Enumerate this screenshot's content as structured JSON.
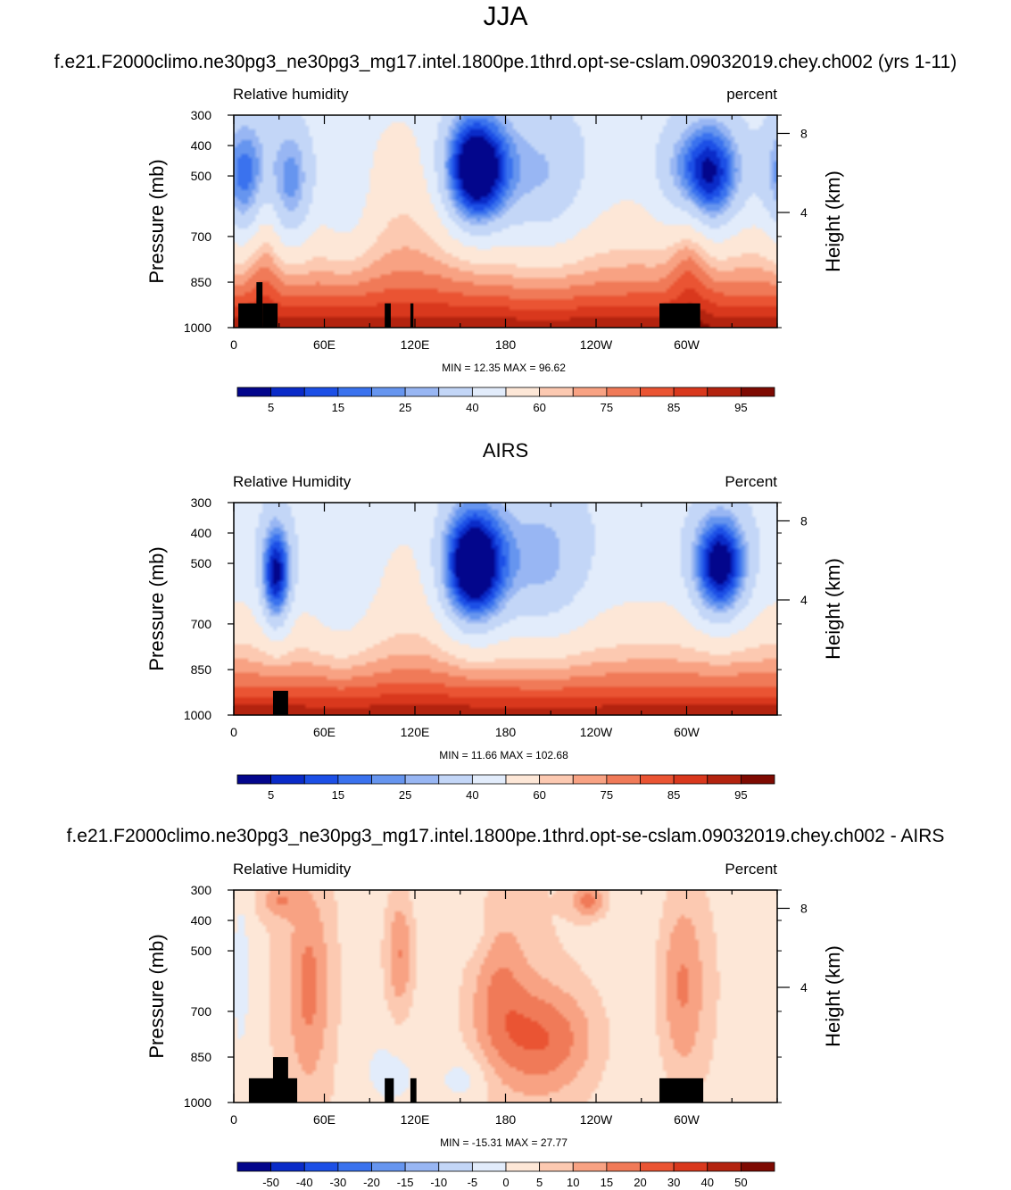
{
  "page": {
    "title": "JJA"
  },
  "panels": [
    {
      "header": "f.e21.F2000climo.ne30pg3_ne30pg3_mg17.intel.1800pe.1thrd.opt-se-cslam.09032019.chey.ch002 (yrs 1-11)",
      "left_label": "Relative humidity",
      "right_label": "percent",
      "min_max": "MIN =  12.35  MAX =  96.62"
    },
    {
      "header": "AIRS",
      "left_label": "Relative Humidity",
      "right_label": "Percent",
      "min_max": "MIN =  11.66  MAX = 102.68"
    },
    {
      "header": "f.e21.F2000climo.ne30pg3_ne30pg3_mg17.intel.1800pe.1thrd.opt-se-cslam.09032019.chey.ch002 - AIRS",
      "left_label": "Relative Humidity",
      "right_label": "Percent",
      "min_max": "MIN = -15.31  MAX = 27.77"
    }
  ],
  "chart_data": [
    {
      "type": "heatmap",
      "title": "f.e21.F2000climo.ne30pg3_ne30pg3_mg17.intel.1800pe.1thrd.opt-se-cslam.09032019.chey.ch002 (yrs 1-11)",
      "field": "Relative humidity",
      "units": "percent",
      "xlabel": "",
      "ylabel": "Pressure (mb)",
      "y2label": "Height (km)",
      "x_ticks": [
        "0",
        "60E",
        "120E",
        "180",
        "120W",
        "60W"
      ],
      "x_tick_values": [
        0,
        60,
        120,
        180,
        240,
        300
      ],
      "xlim": [
        0,
        360
      ],
      "y_ticks": [
        300,
        400,
        500,
        700,
        850,
        1000
      ],
      "ylim": [
        1000,
        300
      ],
      "y2_ticks": [
        8,
        4
      ],
      "min": 12.35,
      "max": 96.62,
      "colorbar_labels": [
        "5",
        "15",
        "25",
        "40",
        "60",
        "75",
        "85",
        "95"
      ],
      "colorbar_colors": [
        "#03068c",
        "#0a2bc8",
        "#1c4fe6",
        "#3a72ee",
        "#6695ef",
        "#98b6f3",
        "#c3d6f7",
        "#e2ecfb",
        "#fde7d7",
        "#fcc9b1",
        "#f8a283",
        "#f07a58",
        "#ea5433",
        "#d9381d",
        "#b3230f",
        "#7e0a02"
      ],
      "topography": [
        {
          "lon_from": 3,
          "lon_to": 13,
          "p_top": 920
        },
        {
          "lon_from": 13,
          "lon_to": 17,
          "p_top": 920
        },
        {
          "lon_from": 15,
          "lon_to": 19,
          "p_top": 850
        },
        {
          "lon_from": 19,
          "lon_to": 29,
          "p_top": 920
        },
        {
          "lon_from": 100,
          "lon_to": 104,
          "p_top": 920
        },
        {
          "lon_from": 117,
          "lon_to": 119,
          "p_top": 920
        },
        {
          "lon_from": 282,
          "lon_to": 309,
          "p_top": 920
        }
      ]
    },
    {
      "type": "heatmap",
      "title": "AIRS",
      "field": "Relative Humidity",
      "units": "Percent",
      "xlabel": "",
      "ylabel": "Pressure (mb)",
      "y2label": "Height (km)",
      "x_ticks": [
        "0",
        "60E",
        "120E",
        "180",
        "120W",
        "60W"
      ],
      "x_tick_values": [
        0,
        60,
        120,
        180,
        240,
        300
      ],
      "xlim": [
        0,
        360
      ],
      "y_ticks": [
        300,
        400,
        500,
        700,
        850,
        1000
      ],
      "ylim": [
        1000,
        300
      ],
      "y2_ticks": [
        8,
        4
      ],
      "min": 11.66,
      "max": 102.68,
      "colorbar_labels": [
        "5",
        "15",
        "25",
        "40",
        "60",
        "75",
        "85",
        "95"
      ],
      "colorbar_colors": [
        "#03068c",
        "#0a2bc8",
        "#1c4fe6",
        "#3a72ee",
        "#6695ef",
        "#98b6f3",
        "#c3d6f7",
        "#e2ecfb",
        "#fde7d7",
        "#fcc9b1",
        "#f8a283",
        "#f07a58",
        "#ea5433",
        "#d9381d",
        "#b3230f",
        "#7e0a02"
      ],
      "topography": [
        {
          "lon_from": 26,
          "lon_to": 36,
          "p_top": 920
        }
      ]
    },
    {
      "type": "heatmap",
      "title": "f.e21.F2000climo.ne30pg3_ne30pg3_mg17.intel.1800pe.1thrd.opt-se-cslam.09032019.chey.ch002 - AIRS",
      "field": "Relative Humidity",
      "units": "Percent",
      "xlabel": "",
      "ylabel": "Pressure (mb)",
      "y2label": "Height (km)",
      "x_ticks": [
        "0",
        "60E",
        "120E",
        "180",
        "120W",
        "60W"
      ],
      "x_tick_values": [
        0,
        60,
        120,
        180,
        240,
        300
      ],
      "xlim": [
        0,
        360
      ],
      "y_ticks": [
        300,
        400,
        500,
        700,
        850,
        1000
      ],
      "ylim": [
        1000,
        300
      ],
      "y2_ticks": [
        8,
        4
      ],
      "min": -15.31,
      "max": 27.77,
      "colorbar_labels": [
        "-50",
        "-40",
        "-30",
        "-20",
        "-15",
        "-10",
        "-5",
        "0",
        "5",
        "10",
        "15",
        "20",
        "30",
        "40",
        "50"
      ],
      "colorbar_colors": [
        "#03068c",
        "#0a2bc8",
        "#1c4fe6",
        "#3a72ee",
        "#6695ef",
        "#98b6f3",
        "#c3d6f7",
        "#e2ecfb",
        "#fde7d7",
        "#fcc9b1",
        "#f8a283",
        "#f07a58",
        "#ea5433",
        "#d9381d",
        "#b3230f",
        "#7e0a02"
      ],
      "topography": [
        {
          "lon_from": 10,
          "lon_to": 42,
          "p_top": 920
        },
        {
          "lon_from": 26,
          "lon_to": 36,
          "p_top": 850
        },
        {
          "lon_from": 100,
          "lon_to": 106,
          "p_top": 920
        },
        {
          "lon_from": 117,
          "lon_to": 121,
          "p_top": 920
        },
        {
          "lon_from": 282,
          "lon_to": 311,
          "p_top": 920
        }
      ]
    }
  ]
}
